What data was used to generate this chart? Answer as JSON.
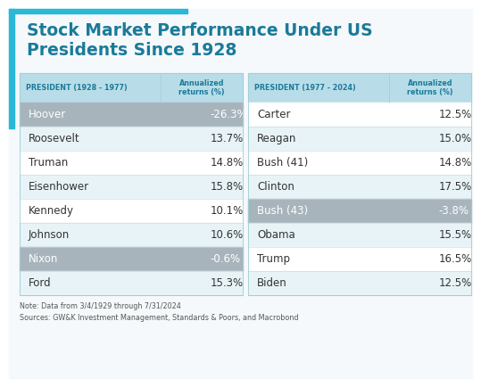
{
  "title_line1": "Stock Market Performance Under US",
  "title_line2": "Presidents Since 1928",
  "title_color": "#1a7a9a",
  "accent_color": "#29b8d8",
  "background_color": "#f5f9fb",
  "outer_bg": "#ffffff",
  "header_bg": "#b8dde8",
  "row_alt_bg": "#e8f3f7",
  "row_white_bg": "#ffffff",
  "gray_row_bg": "#a8b4bc",
  "left_table": {
    "col1_header": "PRESIDENT (1928 - 1977)",
    "col2_header": "Annualized\nreturns (%)",
    "rows": [
      {
        "name": "Hoover",
        "value": "-26.3%",
        "highlight": true
      },
      {
        "name": "Roosevelt",
        "value": "13.7%",
        "highlight": false
      },
      {
        "name": "Truman",
        "value": "14.8%",
        "highlight": false
      },
      {
        "name": "Eisenhower",
        "value": "15.8%",
        "highlight": false
      },
      {
        "name": "Kennedy",
        "value": "10.1%",
        "highlight": false
      },
      {
        "name": "Johnson",
        "value": "10.6%",
        "highlight": false
      },
      {
        "name": "Nixon",
        "value": "-0.6%",
        "highlight": true
      },
      {
        "name": "Ford",
        "value": "15.3%",
        "highlight": false
      }
    ]
  },
  "right_table": {
    "col1_header": "PRESIDENT (1977 - 2024)",
    "col2_header": "Annualized\nreturns (%)",
    "rows": [
      {
        "name": "Carter",
        "value": "12.5%",
        "highlight": false
      },
      {
        "name": "Reagan",
        "value": "15.0%",
        "highlight": false
      },
      {
        "name": "Bush (41)",
        "value": "14.8%",
        "highlight": false
      },
      {
        "name": "Clinton",
        "value": "17.5%",
        "highlight": false
      },
      {
        "name": "Bush (43)",
        "value": "-3.8%",
        "highlight": true
      },
      {
        "name": "Obama",
        "value": "15.5%",
        "highlight": false
      },
      {
        "name": "Trump",
        "value": "16.5%",
        "highlight": false
      },
      {
        "name": "Biden",
        "value": "12.5%",
        "highlight": false
      }
    ]
  },
  "note_line1": "Note: Data from 3/4/1929 through 7/31/2024",
  "note_line2": "Sources: GW&K Investment Management, Standards & Poors, and Macrobond"
}
